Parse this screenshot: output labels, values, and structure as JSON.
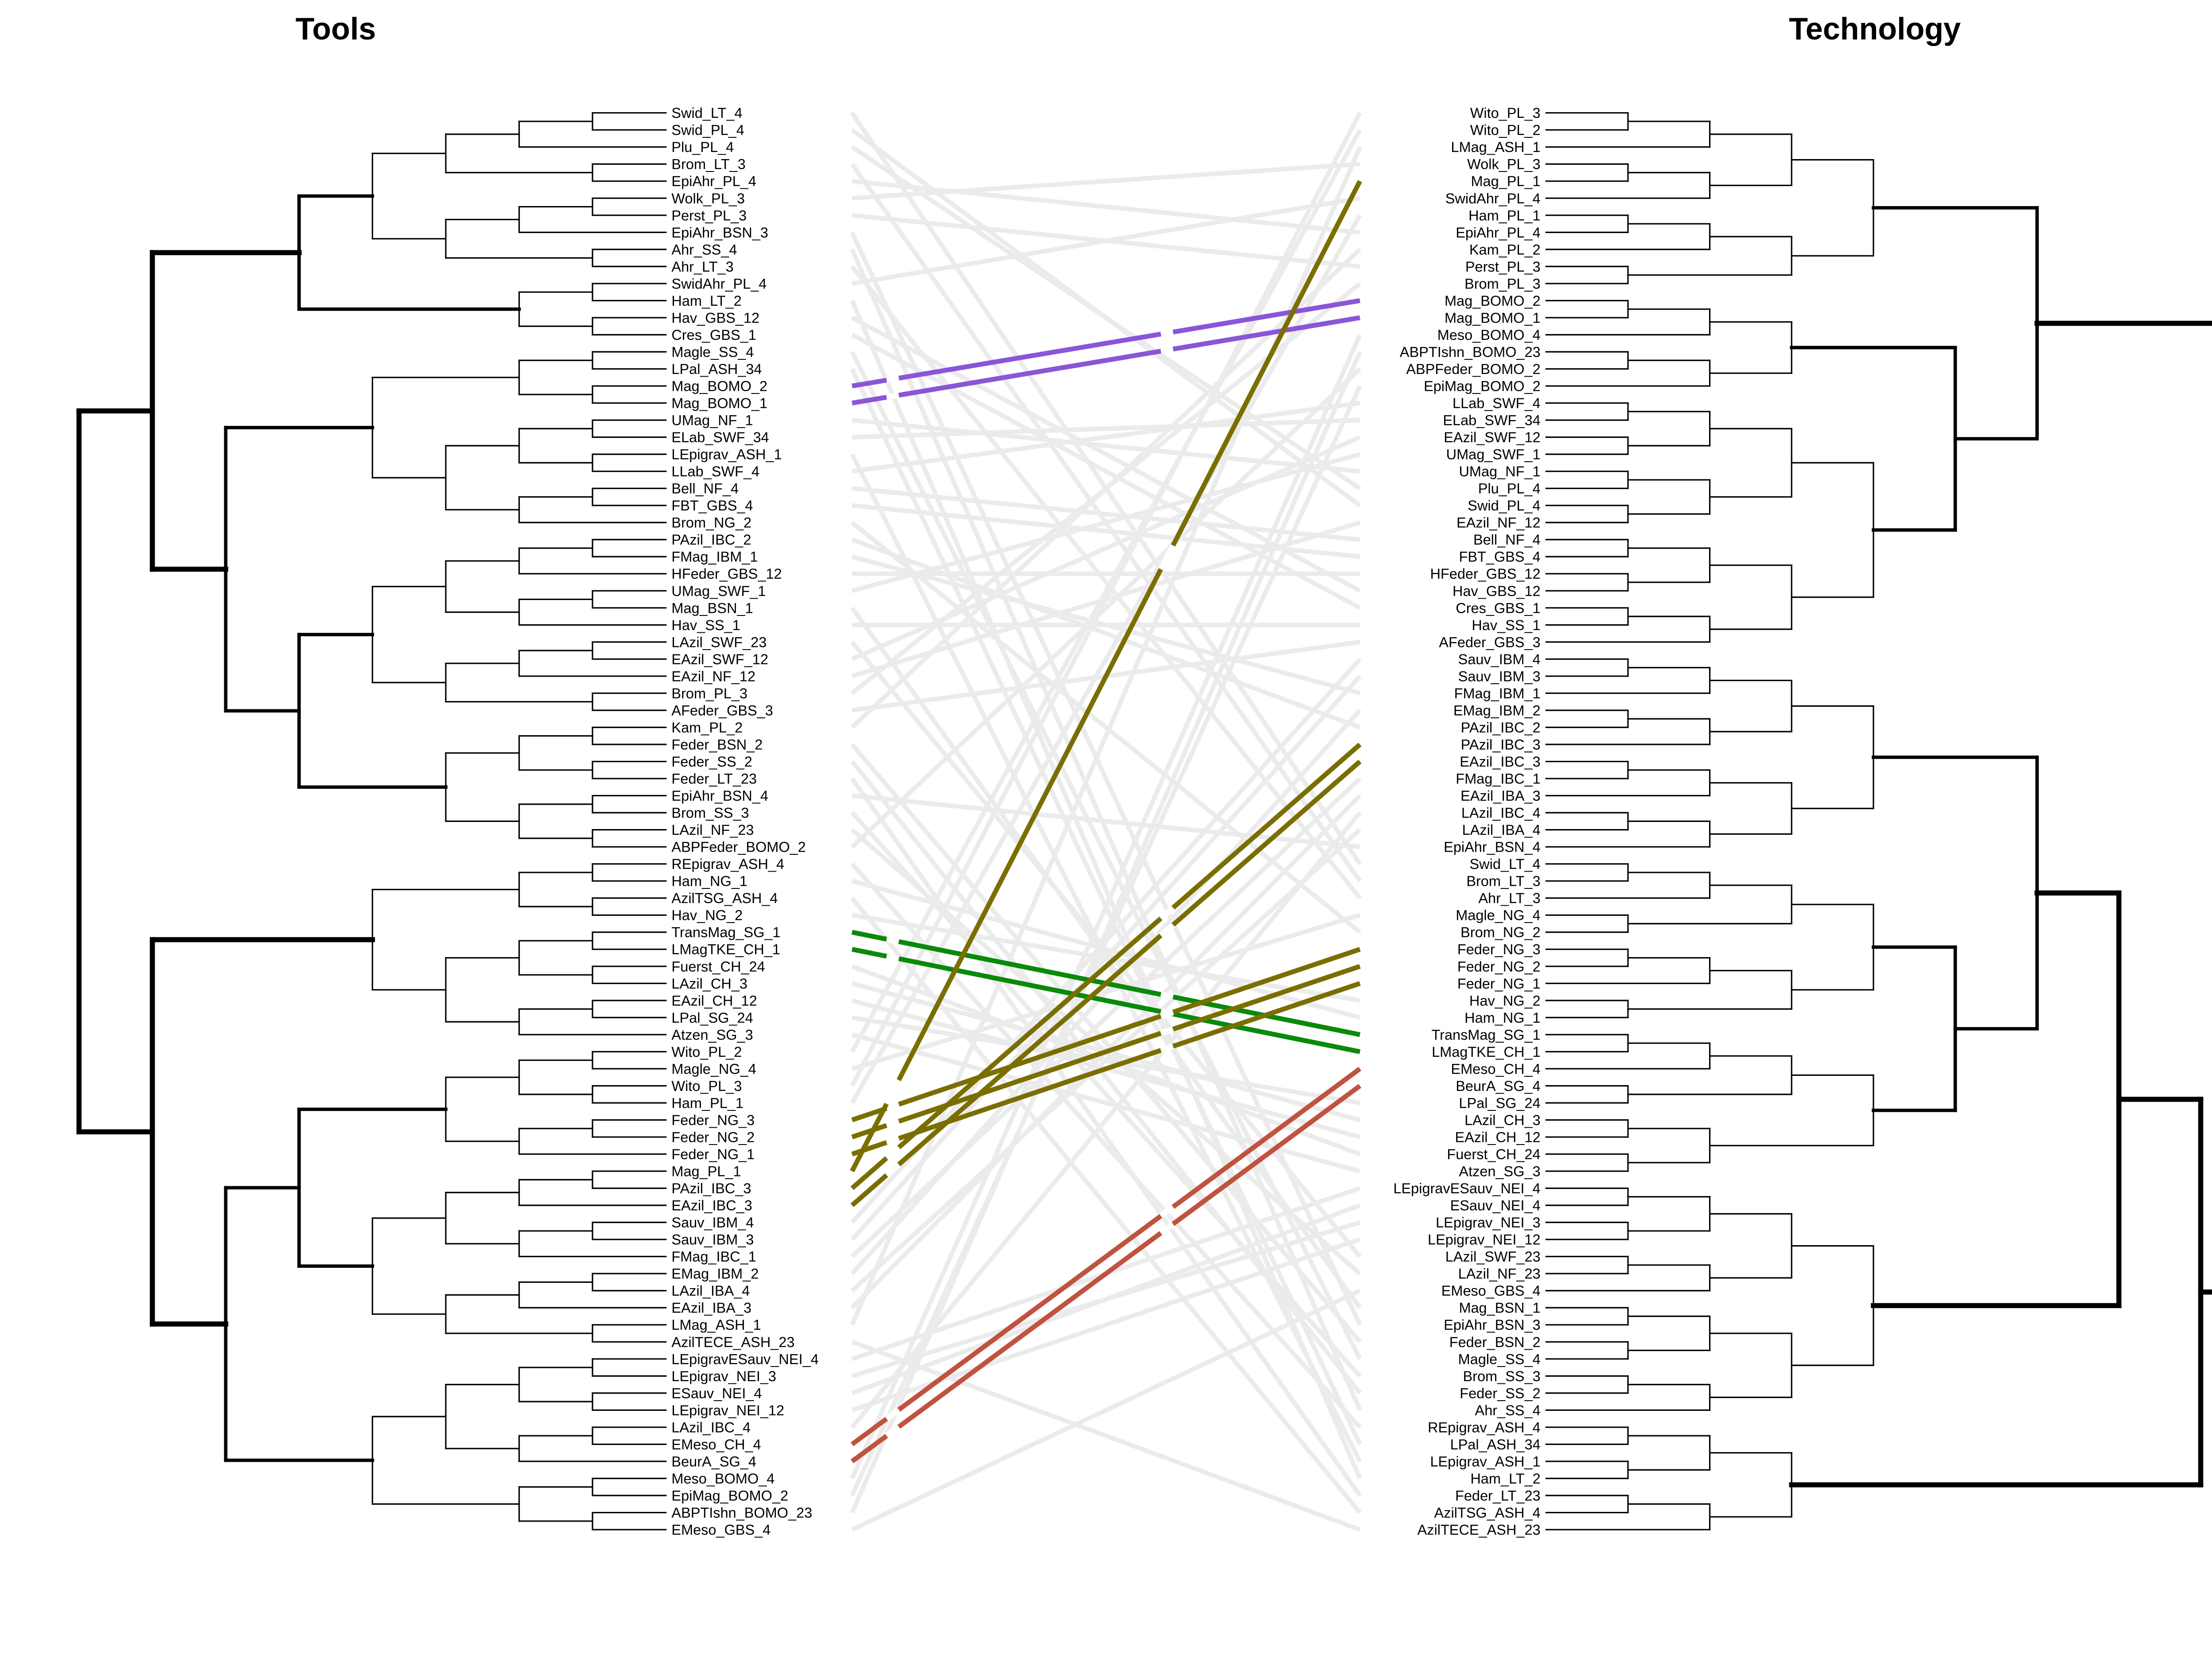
{
  "titles": {
    "left": "Tools",
    "right": "Technology"
  },
  "colors": {
    "tree": "#000000",
    "background_link": "#ebebeb",
    "purple": "#8a55d8",
    "green": "#0a8a0a",
    "olive": "#7a6e00",
    "red": "#c0533f"
  },
  "left_leaves": [
    "Swid_LT_4",
    "Swid_PL_4",
    "Plu_PL_4",
    "Brom_LT_3",
    "EpiAhr_PL_4",
    "Wolk_PL_3",
    "Perst_PL_3",
    "EpiAhr_BSN_3",
    "Ahr_SS_4",
    "Ahr_LT_3",
    "SwidAhr_PL_4",
    "Ham_LT_2",
    "Hav_GBS_12",
    "Cres_GBS_1",
    "Magle_SS_4",
    "LPal_ASH_34",
    "Mag_BOMO_2",
    "Mag_BOMO_1",
    "UMag_NF_1",
    "ELab_SWF_34",
    "LEpigrav_ASH_1",
    "LLab_SWF_4",
    "Bell_NF_4",
    "FBT_GBS_4",
    "Brom_NG_2",
    "PAzil_IBC_2",
    "FMag_IBM_1",
    "HFeder_GBS_12",
    "UMag_SWF_1",
    "Mag_BSN_1",
    "Hav_SS_1",
    "LAzil_SWF_23",
    "EAzil_SWF_12",
    "EAzil_NF_12",
    "Brom_PL_3",
    "AFeder_GBS_3",
    "Kam_PL_2",
    "Feder_BSN_2",
    "Feder_SS_2",
    "Feder_LT_23",
    "EpiAhr_BSN_4",
    "Brom_SS_3",
    "LAzil_NF_23",
    "ABPFeder_BOMO_2",
    "REpigrav_ASH_4",
    "Ham_NG_1",
    "AzilTSG_ASH_4",
    "Hav_NG_2",
    "TransMag_SG_1",
    "LMagTKE_CH_1",
    "Fuerst_CH_24",
    "LAzil_CH_3",
    "EAzil_CH_12",
    "LPal_SG_24",
    "Atzen_SG_3",
    "Wito_PL_2",
    "Magle_NG_4",
    "Wito_PL_3",
    "Ham_PL_1",
    "Feder_NG_3",
    "Feder_NG_2",
    "Feder_NG_1",
    "Mag_PL_1",
    "PAzil_IBC_3",
    "EAzil_IBC_3",
    "Sauv_IBM_4",
    "Sauv_IBM_3",
    "FMag_IBC_1",
    "EMag_IBM_2",
    "LAzil_IBA_4",
    "EAzil_IBA_3",
    "LMag_ASH_1",
    "AzilTECE_ASH_23",
    "LEpigravESauv_NEI_4",
    "LEpigrav_NEI_3",
    "ESauv_NEI_4",
    "LEpigrav_NEI_12",
    "LAzil_IBC_4",
    "EMeso_CH_4",
    "BeurA_SG_4",
    "Meso_BOMO_4",
    "EpiMag_BOMO_2",
    "ABPTIshn_BOMO_23",
    "EMeso_GBS_4"
  ],
  "right_leaves": [
    "Wito_PL_3",
    "Wito_PL_2",
    "LMag_ASH_1",
    "Wolk_PL_3",
    "Mag_PL_1",
    "SwidAhr_PL_4",
    "Ham_PL_1",
    "EpiAhr_PL_4",
    "Kam_PL_2",
    "Perst_PL_3",
    "Brom_PL_3",
    "Mag_BOMO_2",
    "Mag_BOMO_1",
    "Meso_BOMO_4",
    "ABPTIshn_BOMO_23",
    "ABPFeder_BOMO_2",
    "EpiMag_BOMO_2",
    "LLab_SWF_4",
    "ELab_SWF_34",
    "EAzil_SWF_12",
    "UMag_SWF_1",
    "UMag_NF_1",
    "Plu_PL_4",
    "Swid_PL_4",
    "EAzil_NF_12",
    "Bell_NF_4",
    "FBT_GBS_4",
    "HFeder_GBS_12",
    "Hav_GBS_12",
    "Cres_GBS_1",
    "Hav_SS_1",
    "AFeder_GBS_3",
    "Sauv_IBM_4",
    "Sauv_IBM_3",
    "FMag_IBM_1",
    "EMag_IBM_2",
    "PAzil_IBC_2",
    "PAzil_IBC_3",
    "EAzil_IBC_3",
    "FMag_IBC_1",
    "EAzil_IBA_3",
    "LAzil_IBC_4",
    "LAzil_IBA_4",
    "EpiAhr_BSN_4",
    "Swid_LT_4",
    "Brom_LT_3",
    "Ahr_LT_3",
    "Magle_NG_4",
    "Brom_NG_2",
    "Feder_NG_3",
    "Feder_NG_2",
    "Feder_NG_1",
    "Hav_NG_2",
    "Ham_NG_1",
    "TransMag_SG_1",
    "LMagTKE_CH_1",
    "EMeso_CH_4",
    "BeurA_SG_4",
    "LPal_SG_24",
    "LAzil_CH_3",
    "EAzil_CH_12",
    "Fuerst_CH_24",
    "Atzen_SG_3",
    "LEpigravESauv_NEI_4",
    "ESauv_NEI_4",
    "LEpigrav_NEI_3",
    "LEpigrav_NEI_12",
    "LAzil_SWF_23",
    "LAzil_NF_23",
    "EMeso_GBS_4",
    "Mag_BSN_1",
    "EpiAhr_BSN_3",
    "Feder_BSN_2",
    "Magle_SS_4",
    "Brom_SS_3",
    "Feder_SS_2",
    "Ahr_SS_4",
    "REpigrav_ASH_4",
    "LPal_ASH_34",
    "LEpigrav_ASH_1",
    "Ham_LT_2",
    "Feder_LT_23",
    "AzilTSG_ASH_4",
    "AzilTECE_ASH_23"
  ],
  "highlight_links": [
    {
      "left": "Mag_BOMO_2",
      "right": "Mag_BOMO_2",
      "color": "purple"
    },
    {
      "left": "Mag_BOMO_1",
      "right": "Mag_BOMO_1",
      "color": "purple"
    },
    {
      "left": "TransMag_SG_1",
      "right": "TransMag_SG_1",
      "color": "green"
    },
    {
      "left": "LMagTKE_CH_1",
      "right": "LMagTKE_CH_1",
      "color": "green"
    },
    {
      "left": "Feder_NG_3",
      "right": "Feder_NG_3",
      "color": "olive"
    },
    {
      "left": "Feder_NG_2",
      "right": "Feder_NG_2",
      "color": "olive"
    },
    {
      "left": "Feder_NG_1",
      "right": "Feder_NG_1",
      "color": "olive"
    },
    {
      "left": "Mag_PL_1",
      "right": "Mag_PL_1",
      "color": "olive"
    },
    {
      "left": "PAzil_IBC_3",
      "right": "PAzil_IBC_3",
      "color": "olive"
    },
    {
      "left": "EAzil_IBC_3",
      "right": "EAzil_IBC_3",
      "color": "olive"
    },
    {
      "left": "EMeso_CH_4",
      "right": "EMeso_CH_4",
      "color": "red"
    },
    {
      "left": "BeurA_SG_4",
      "right": "BeurA_SG_4",
      "color": "red"
    }
  ]
}
